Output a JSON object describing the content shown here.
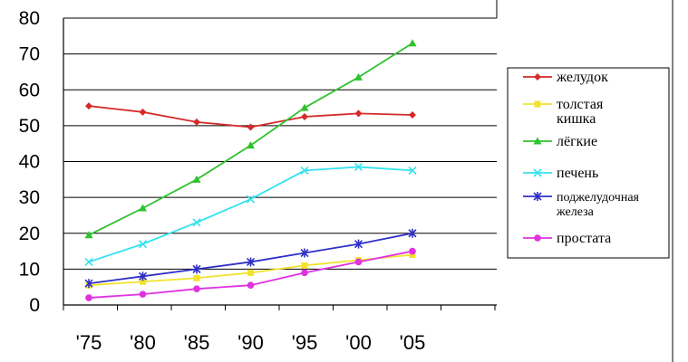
{
  "chart_data": {
    "type": "line",
    "title": "",
    "xlabel": "",
    "ylabel": "",
    "categories": [
      "'75",
      "'80",
      "'85",
      "'90",
      "'95",
      "'00",
      "'05"
    ],
    "ylim": [
      0,
      80
    ],
    "yticks": [
      0,
      10,
      20,
      30,
      40,
      50,
      60,
      70,
      80
    ],
    "grid": true,
    "legend_position": "right",
    "series": [
      {
        "name": "желудок",
        "name_lines": [
          "желудок"
        ],
        "color": "#d42a2a",
        "marker": "diamond",
        "values": [
          55.5,
          53.8,
          51.0,
          49.6,
          52.5,
          53.4,
          53.0
        ]
      },
      {
        "name": "толстая кишка",
        "name_lines": [
          "толстая",
          "кишка"
        ],
        "color": "#f2e32c",
        "marker": "square",
        "values": [
          5.5,
          6.5,
          7.5,
          9.0,
          11.0,
          12.5,
          14.0
        ]
      },
      {
        "name": "лёгкие",
        "name_lines": [
          "лёгкие"
        ],
        "color": "#2ec22e",
        "marker": "triangle",
        "values": [
          19.5,
          27.0,
          35.0,
          44.5,
          55.0,
          63.5,
          73.0
        ]
      },
      {
        "name": "печень",
        "name_lines": [
          "печень"
        ],
        "color": "#33e3ee",
        "marker": "x",
        "values": [
          12.0,
          17.0,
          23.0,
          29.5,
          37.5,
          38.5,
          37.5
        ]
      },
      {
        "name": "поджелудочная железа",
        "name_lines": [
          "поджелудочная",
          "железа"
        ],
        "color": "#2f2fc8",
        "marker": "star",
        "values": [
          6.0,
          8.0,
          10.0,
          12.0,
          14.5,
          17.0,
          20.0
        ]
      },
      {
        "name": "простата",
        "name_lines": [
          "простата"
        ],
        "color": "#e031e0",
        "marker": "circle",
        "values": [
          2.0,
          3.0,
          4.5,
          5.5,
          9.0,
          12.0,
          15.0
        ]
      }
    ]
  }
}
